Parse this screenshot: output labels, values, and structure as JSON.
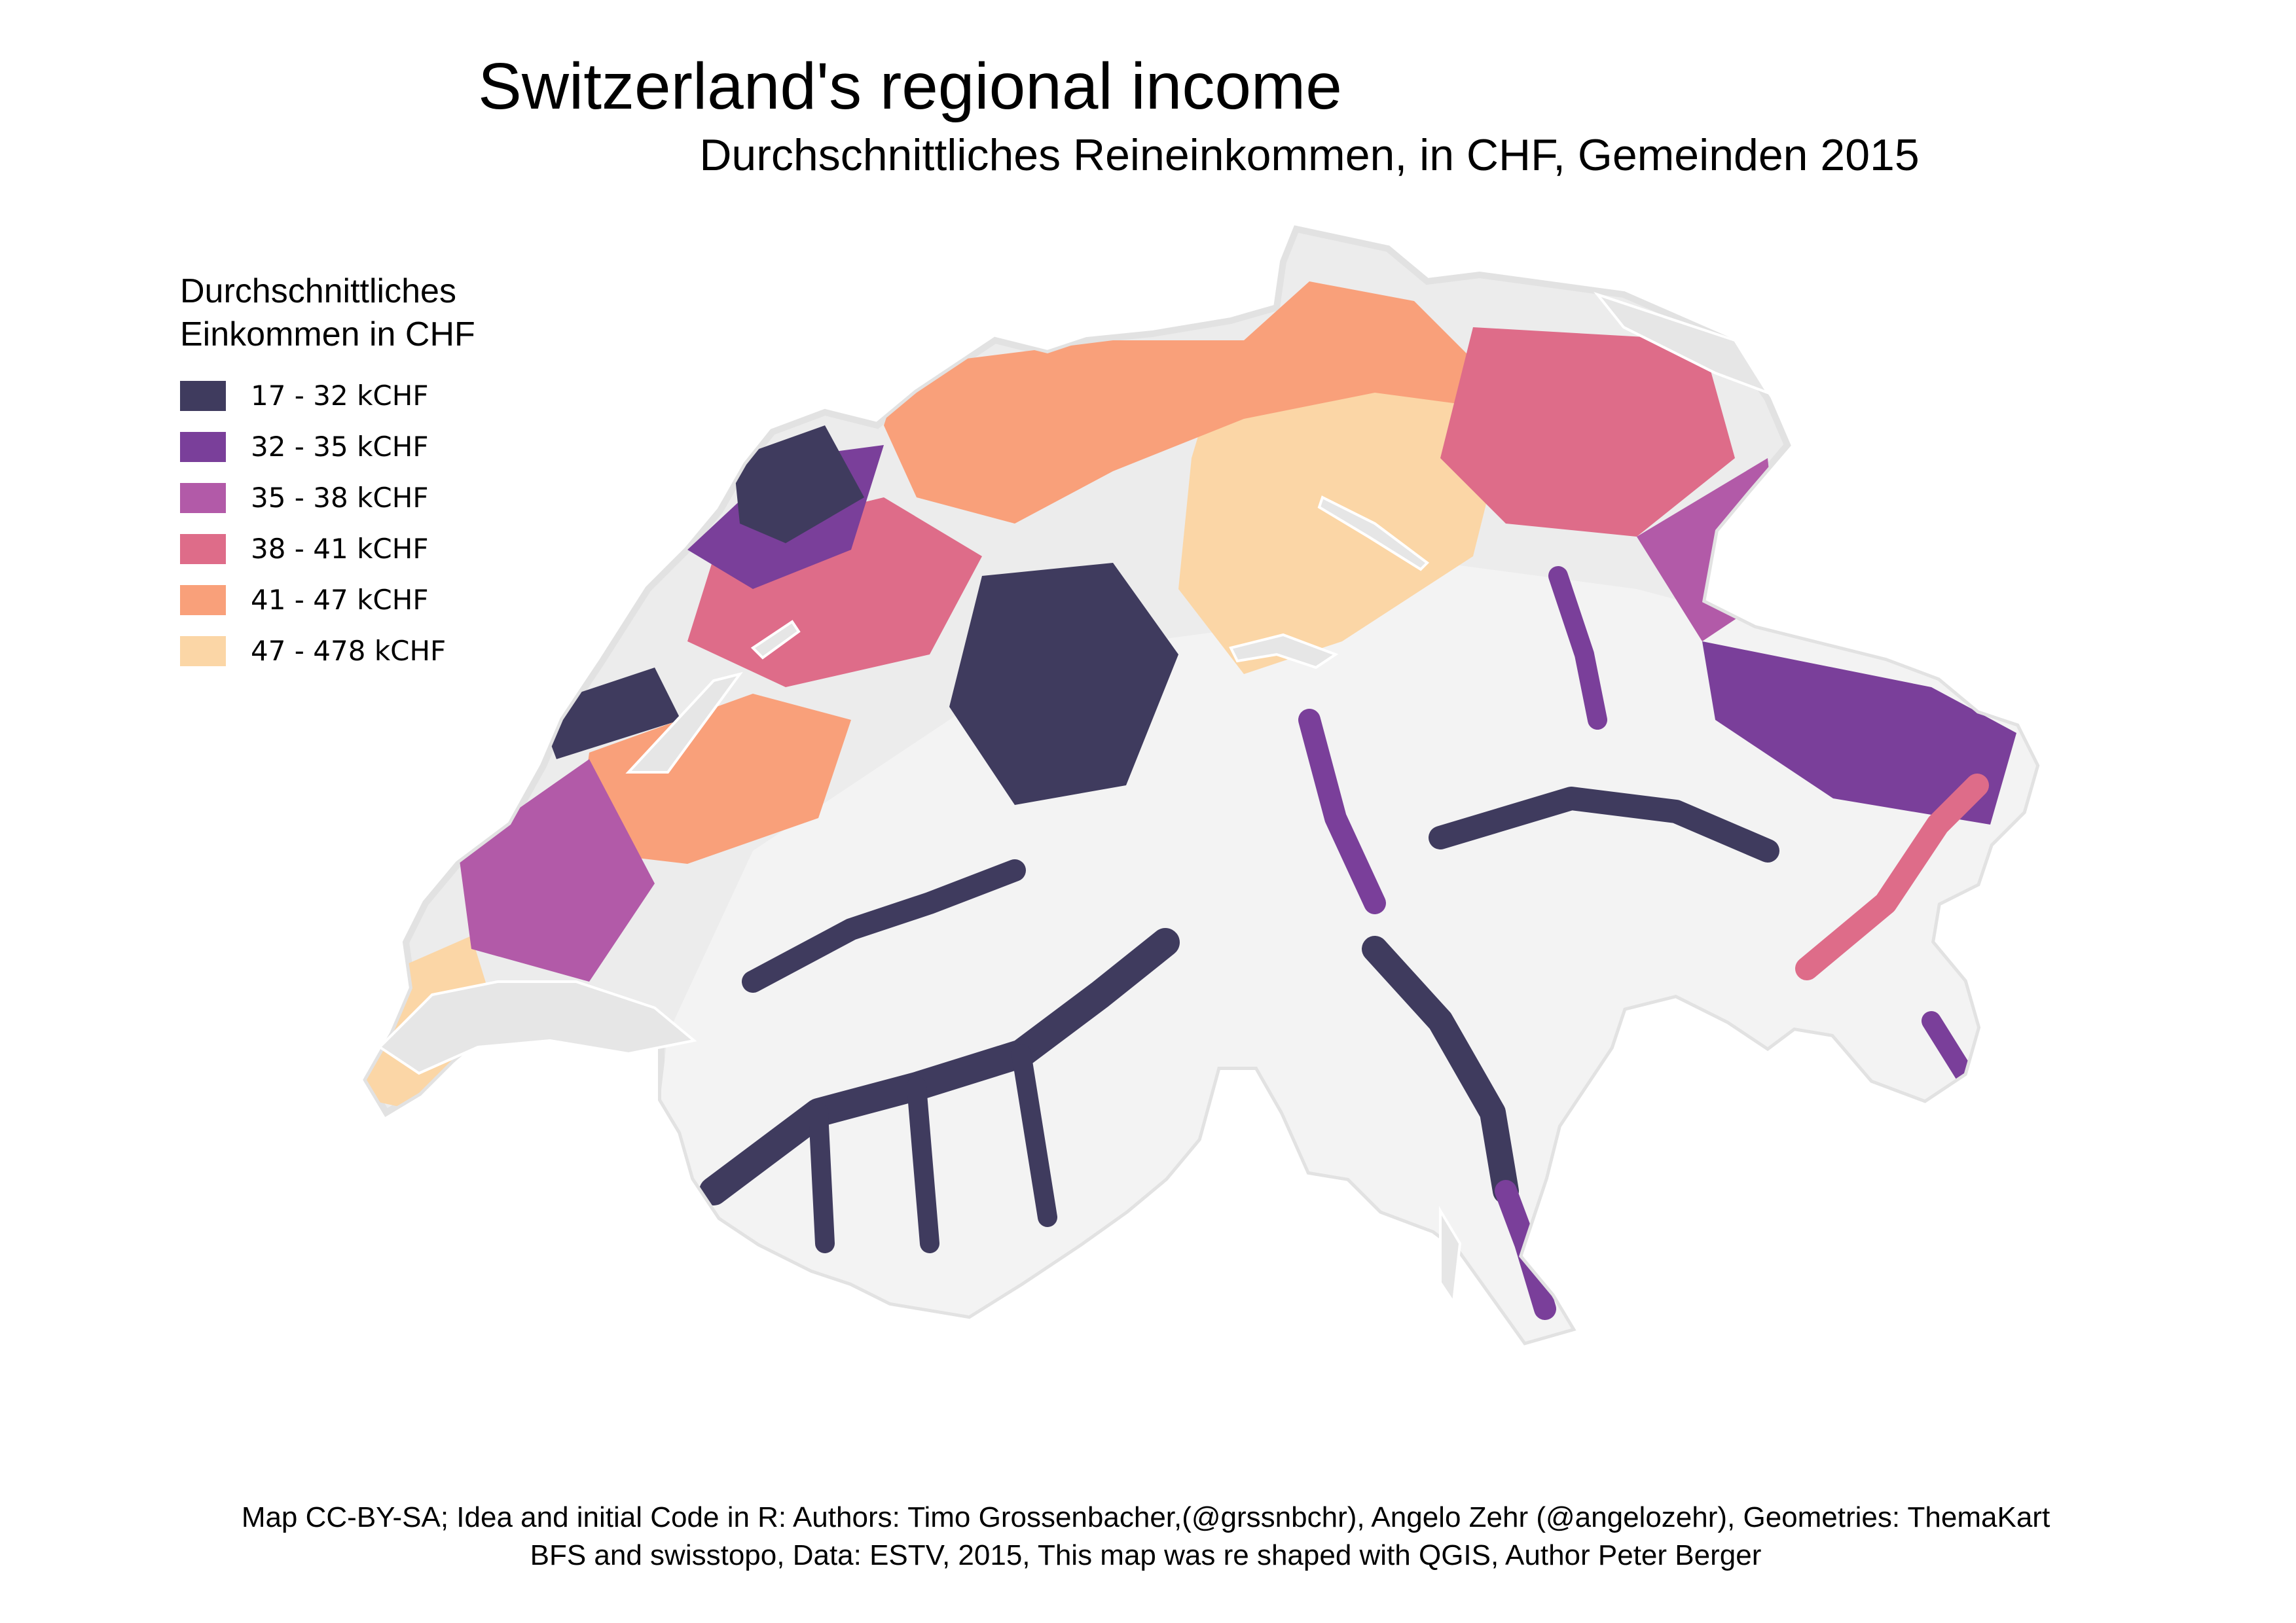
{
  "title": "Switzerland's regional income",
  "subtitle": "Durchschnittliches Reineinkommen, in CHF, Gemeinden 2015",
  "legend": {
    "title": "Durchschnittliches\nEinkommen in CHF",
    "items": [
      {
        "label": "17 - 32 kCHF",
        "color": "#3f3b5e"
      },
      {
        "label": "32 - 35 kCHF",
        "color": "#7a3f9a"
      },
      {
        "label": "35 - 38 kCHF",
        "color": "#b25aa8"
      },
      {
        "label": "38 - 41 kCHF",
        "color": "#de6c89"
      },
      {
        "label": "41 - 47 kCHF",
        "color": "#f9a07a"
      },
      {
        "label": "47 - 478 kCHF",
        "color": "#fbd6a6"
      }
    ]
  },
  "map": {
    "lake_color": "#e6e6e6",
    "mountain_color": "#f3f3f3",
    "border_color": "#ffffff"
  },
  "credits": {
    "line1": "Map CC-BY-SA; Idea and initial Code in R: Authors: Timo Grossenbacher,(@grssnbchr), Angelo Zehr (@angelozehr), Geometries: ThemaKart",
    "line2": "BFS and swisstopo, Data: ESTV, 2015, This map was re shaped with QGIS, Author Peter Berger"
  }
}
